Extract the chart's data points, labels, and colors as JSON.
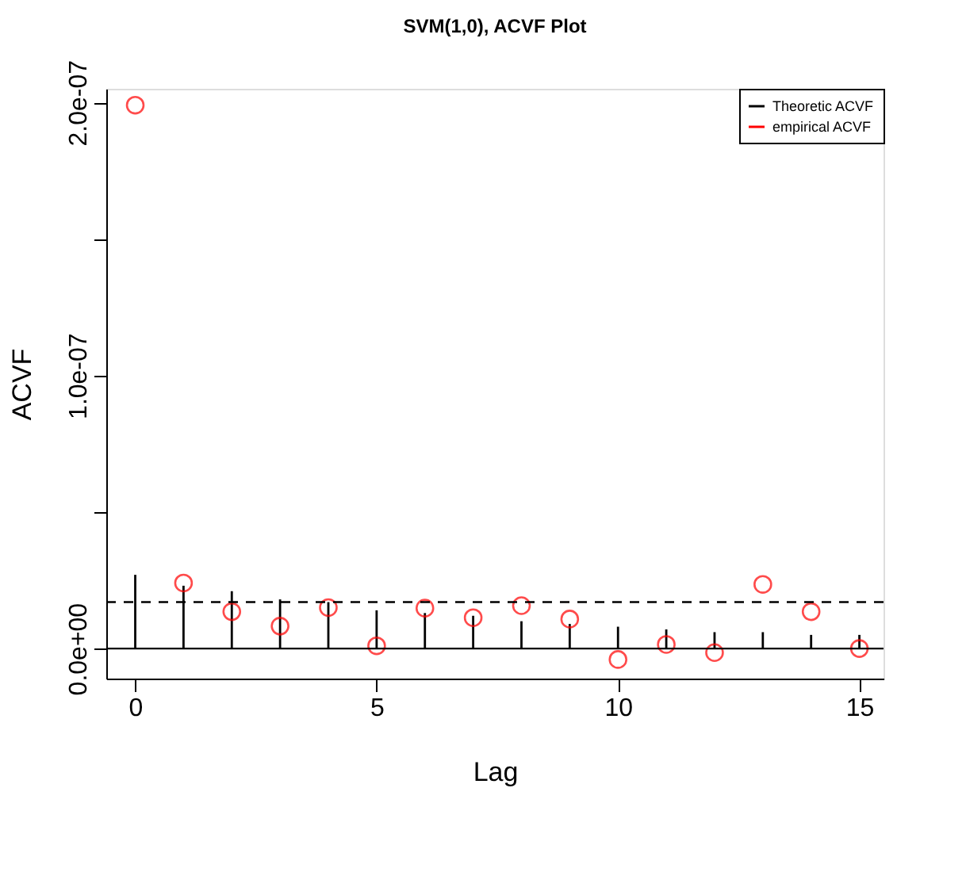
{
  "chart_data": {
    "type": "scatter",
    "title": "SVM(1,0), ACVF Plot",
    "xlabel": "Lag",
    "ylabel": "ACVF",
    "x": [
      0,
      1,
      2,
      3,
      4,
      5,
      6,
      7,
      8,
      9,
      10,
      11,
      12,
      13,
      14,
      15
    ],
    "series": [
      {
        "name": "Theoretic ACVF",
        "type": "bar",
        "color": "#000000",
        "values": [
          2.7e-08,
          2.3e-08,
          2.1e-08,
          1.8e-08,
          1.7e-08,
          1.4e-08,
          1.3e-08,
          1.2e-08,
          1e-08,
          9e-09,
          8e-09,
          7e-09,
          6e-09,
          6e-09,
          5e-09,
          5e-09
        ]
      },
      {
        "name": "empirical ACVF",
        "marker": "circle",
        "color": "#ff0000",
        "values": [
          1.99e-07,
          2.4e-08,
          1.35e-08,
          8.2e-09,
          1.5e-08,
          1e-09,
          1.48e-08,
          1.13e-08,
          1.57e-08,
          1.08e-08,
          -4e-09,
          1.5e-09,
          -1.5e-09,
          2.35e-08,
          1.35e-08,
          0.0
        ]
      }
    ],
    "xlim": [
      -0.6,
      15.5
    ],
    "xticks": [
      0,
      5,
      10,
      15
    ],
    "ylim": [
      -1.1e-08,
      2.05e-07
    ],
    "yticks": [
      {
        "value": 0,
        "label": "0.0e+00"
      },
      {
        "value": 5e-08,
        "label": null
      },
      {
        "value": 1e-07,
        "label": "1.0e-07"
      },
      {
        "value": 1.5e-07,
        "label": null
      },
      {
        "value": 2e-07,
        "label": "2.0e-07"
      }
    ],
    "ref_lines": [
      {
        "axis": "y",
        "value": 0,
        "label": null,
        "color": "#000000",
        "line_style": "solid"
      },
      {
        "axis": "y",
        "value": 1.7e-08,
        "label": null,
        "color": "#000000",
        "line_style": "dashed"
      }
    ],
    "grid": false,
    "legend": "top right"
  }
}
